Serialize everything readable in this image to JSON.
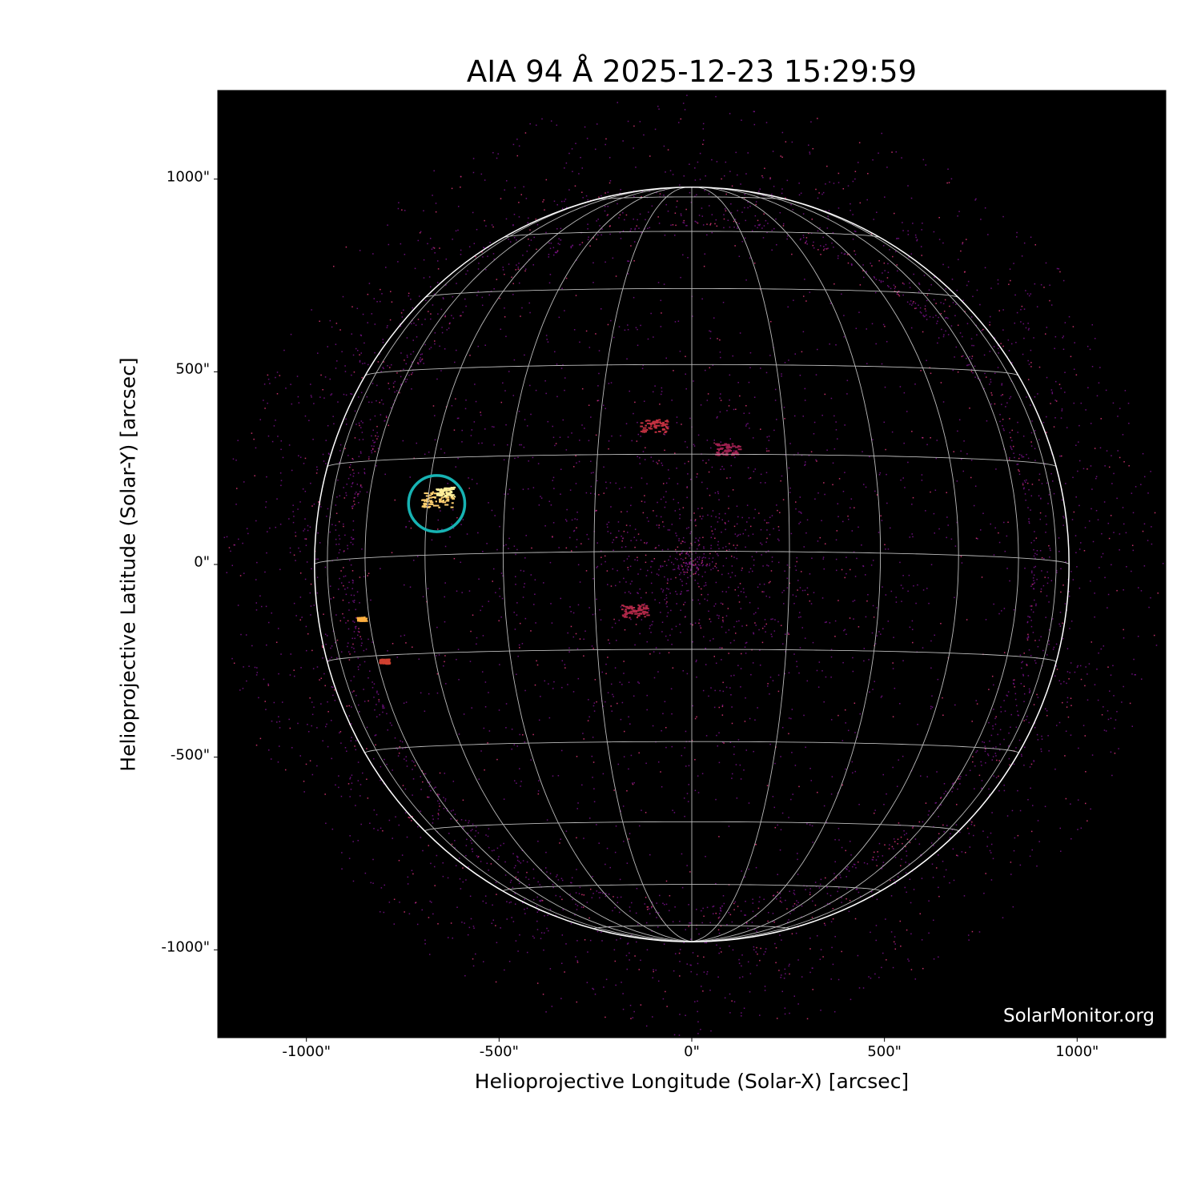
{
  "chart_data": {
    "type": "image",
    "title": "AIA 94 Å 2025-12-23 15:29:59",
    "xlabel": "Helioprojective Longitude (Solar-X) [arcsec]",
    "ylabel": "Helioprojective Latitude (Solar-Y) [arcsec]",
    "xlim": [
      -1230,
      1230
    ],
    "ylim": [
      -1230,
      1230
    ],
    "xticks": [
      {
        "v": -1000,
        "label": "-1000\""
      },
      {
        "v": -500,
        "label": "-500\""
      },
      {
        "v": 0,
        "label": "0\""
      },
      {
        "v": 500,
        "label": "500\""
      },
      {
        "v": 1000,
        "label": "1000\""
      }
    ],
    "yticks": [
      {
        "v": 1000,
        "label": "1000\""
      },
      {
        "v": 500,
        "label": "500\""
      },
      {
        "v": 0,
        "label": "0\""
      },
      {
        "v": -500,
        "label": "-500\""
      },
      {
        "v": -1000,
        "label": "-1000\""
      }
    ],
    "solar_radius_arcsec": 979,
    "grid_spacing_deg": 15,
    "colormap": "inferno-like",
    "highlight_circle": {
      "x": -662,
      "y": 158,
      "r": 73,
      "color": "#17b3b3"
    },
    "watermark": "SolarMonitor.org",
    "background": "#000000"
  }
}
